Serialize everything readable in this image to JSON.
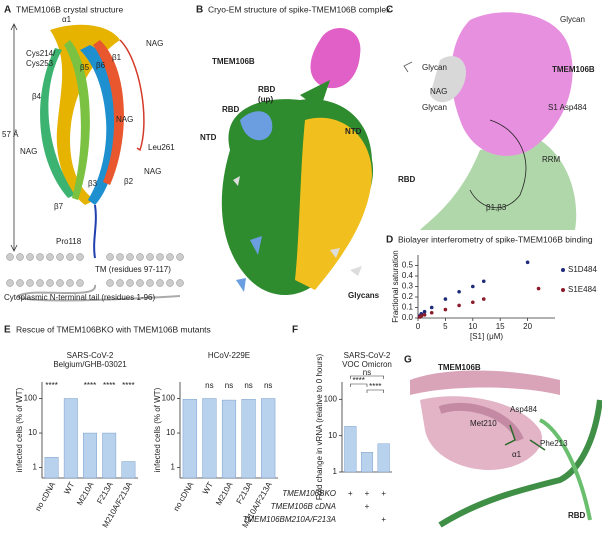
{
  "figure": {
    "panel_a": {
      "letter": "A",
      "title": "TMEM106B crystal structure",
      "labels": [
        "α1",
        "Cys214/",
        "Cys253",
        "β5",
        "β6",
        "β1",
        "β4",
        "NAG",
        "NAG",
        "Leu261",
        "57 Å",
        "NAG",
        "β3",
        "β2",
        "NAG",
        "β7",
        "Pro118",
        "TM (residues 97-117)",
        "Cytoplasmic N-terminal tail (residues 1-96)"
      ]
    },
    "panel_b": {
      "letter": "B",
      "title": "Cryo-EM structure of spike-TMEM106B complex",
      "labels": [
        "TMEM106B",
        "RBD",
        "(up)",
        "RBD",
        "NTD",
        "NTD",
        "Glycans"
      ]
    },
    "panel_c": {
      "letter": "C",
      "labels": [
        "Glycan",
        "Glycan",
        "TMEM106B",
        "NAG",
        "Glycan",
        "S1 Asp484",
        "RRM",
        "RBD",
        "β1,β3"
      ]
    },
    "panel_d": {
      "letter": "D",
      "title": "Biolayer interferometry of spike-TMEM106B binding"
    },
    "panel_e": {
      "letter": "E",
      "title": "Rescue of TMEM106BKO with TMEM106B mutants"
    },
    "panel_f": {
      "letter": "F"
    },
    "panel_g": {
      "letter": "G",
      "labels": [
        "TMEM106B",
        "Asp484",
        "Met210",
        "Phe213",
        "α1",
        "RBD"
      ]
    }
  },
  "chart_data": [
    {
      "type": "scatter",
      "x_label": "[S1] (μM)",
      "y_label": "Fractional saturation",
      "xlim": [
        0,
        25
      ],
      "xticks": [
        0,
        5,
        10,
        15,
        20
      ],
      "ylim": [
        0,
        0.6
      ],
      "yticks": [
        {
          "value": 0,
          "label": "0.0"
        },
        {
          "value": 0.1,
          "label": "0.1"
        },
        {
          "value": 0.2,
          "label": "0.2"
        },
        {
          "value": 0.3,
          "label": "0.3"
        },
        {
          "value": 0.4,
          "label": "0.4"
        },
        {
          "value": 0.5,
          "label": "0.5"
        }
      ],
      "series": [
        {
          "name": "S1D484",
          "color": "#1f2a7a",
          "x": [
            0.3,
            0.6,
            1.2,
            2.5,
            5,
            7.5,
            10,
            12,
            20
          ],
          "values": [
            0.02,
            0.04,
            0.06,
            0.1,
            0.18,
            0.25,
            0.3,
            0.35,
            0.53
          ]
        },
        {
          "name": "S1E484",
          "color": "#8b1a2b",
          "x": [
            0.3,
            0.6,
            1.2,
            2.5,
            5,
            7.5,
            10,
            12,
            22
          ],
          "values": [
            0.01,
            0.02,
            0.03,
            0.05,
            0.08,
            0.12,
            0.15,
            0.18,
            0.28
          ]
        }
      ]
    },
    {
      "type": "bar",
      "title": [
        "SARS-CoV-2",
        "Belgium/GHB-03021"
      ],
      "y_label": "infected cells (% of WT)",
      "log_y": true,
      "ylim": [
        0.5,
        300
      ],
      "yticks": [
        1,
        10,
        100
      ],
      "color": "#b8d2ee",
      "categories": [
        "no cDNA",
        "WT",
        "M210A",
        "F213A",
        "M210A/F213A"
      ],
      "values": [
        2,
        100,
        10,
        10,
        1.5
      ],
      "annotations": [
        "****",
        null,
        "****",
        "****",
        "****"
      ]
    },
    {
      "type": "bar",
      "title": [
        "HCoV-229E"
      ],
      "y_label": "infected cells (% of WT)",
      "log_y": true,
      "ylim": [
        0.5,
        300
      ],
      "yticks": [
        1,
        10,
        100
      ],
      "color": "#b8d2ee",
      "categories": [
        "no cDNA",
        "WT",
        "M210A",
        "F213A",
        "M210A/F213A"
      ],
      "values": [
        95,
        100,
        90,
        95,
        100
      ],
      "annotations": [
        null,
        "ns",
        "ns",
        "ns",
        "ns"
      ]
    },
    {
      "type": "bar",
      "title": [
        "SARS-CoV-2",
        "VOC Omicron"
      ],
      "y_label": "Fold change in vRNA (relative to 0 hours)",
      "log_y": true,
      "ylim": [
        1,
        300
      ],
      "yticks": [
        1,
        10,
        100
      ],
      "color": "#b8d2ee",
      "categories": [
        null,
        null,
        null
      ],
      "values": [
        18,
        3.5,
        6
      ],
      "annotations": [
        "****",
        "****",
        "ns"
      ],
      "rows": [
        {
          "label": "TMEM106BKO",
          "marks": [
            "+",
            "+",
            "+"
          ]
        },
        {
          "label": "TMEM106B cDNA",
          "marks": [
            null,
            "+",
            null
          ]
        },
        {
          "label": "TMEM106BM210A/F213A",
          "marks": [
            null,
            null,
            "+"
          ]
        }
      ]
    }
  ]
}
